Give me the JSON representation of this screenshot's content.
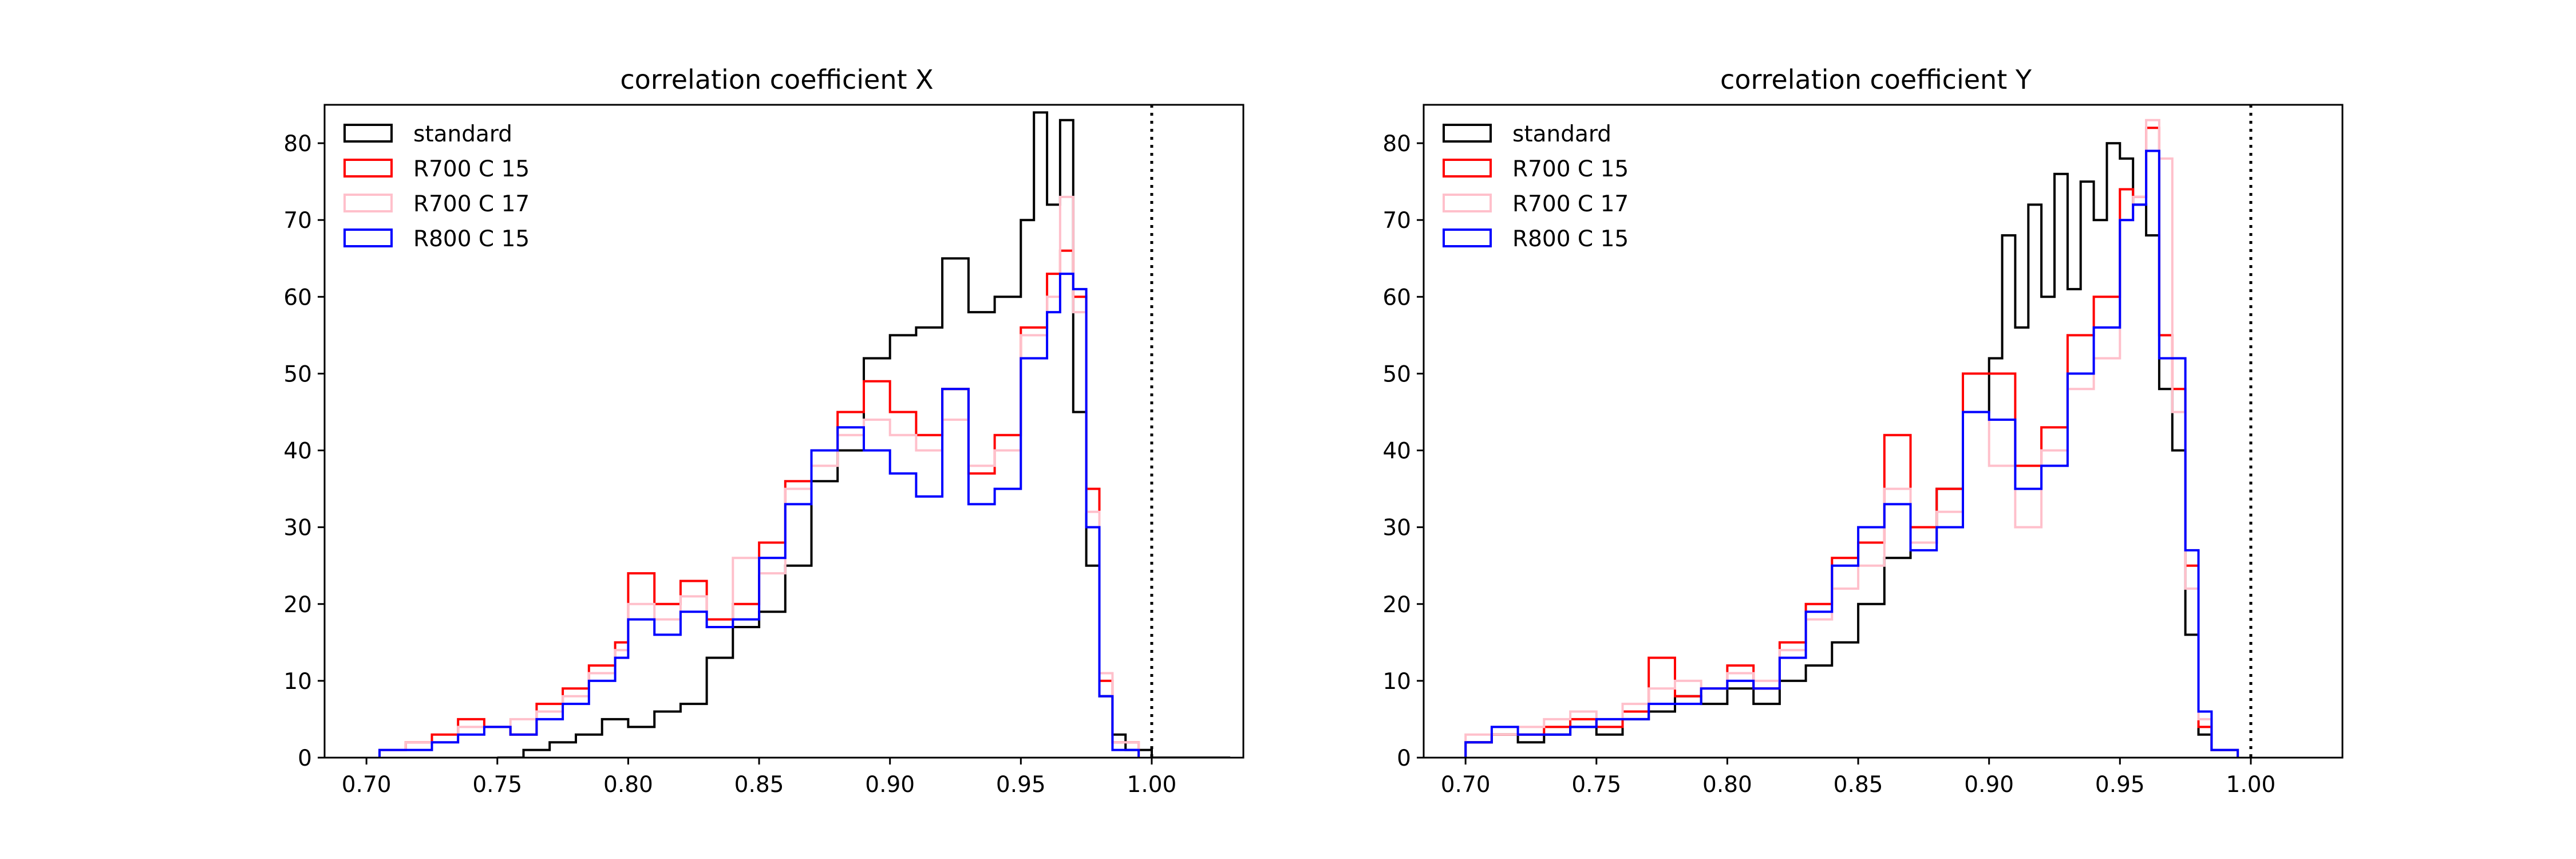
{
  "chart_data": [
    {
      "type": "histogram",
      "title": "correlation coefficient X",
      "xlabel": "",
      "ylabel": "",
      "xlim": [
        0.684,
        1.035
      ],
      "ylim": [
        0,
        85
      ],
      "xticks": [
        "0.70",
        "0.75",
        "0.80",
        "0.85",
        "0.90",
        "0.95",
        "1.00"
      ],
      "yticks": [
        "0",
        "10",
        "20",
        "30",
        "40",
        "50",
        "60",
        "70",
        "80"
      ],
      "vline": {
        "x": 1.0,
        "style": "dotted",
        "color": "#000000"
      },
      "legend": {
        "placement": "top-left"
      },
      "series": [
        {
          "name": "standard",
          "color": "#000000",
          "x": [
            0.75,
            0.76,
            0.77,
            0.78,
            0.79,
            0.8,
            0.81,
            0.82,
            0.83,
            0.84,
            0.85,
            0.86,
            0.87,
            0.88,
            0.89,
            0.9,
            0.91,
            0.92,
            0.93,
            0.94,
            0.95,
            0.955,
            0.96,
            0.965,
            0.97,
            0.975,
            0.98,
            0.985,
            0.99,
            1.0,
            1.02
          ],
          "y": [
            0,
            1,
            2,
            3,
            5,
            4,
            6,
            7,
            13,
            17,
            19,
            25,
            36,
            40,
            52,
            55,
            56,
            65,
            58,
            60,
            70,
            84,
            72,
            83,
            45,
            25,
            8,
            3,
            1,
            0,
            0
          ]
        },
        {
          "name": "R700 C 15",
          "color": "#ff0000",
          "x": [
            0.705,
            0.715,
            0.725,
            0.735,
            0.745,
            0.755,
            0.765,
            0.775,
            0.785,
            0.795,
            0.8,
            0.81,
            0.82,
            0.83,
            0.84,
            0.85,
            0.86,
            0.87,
            0.88,
            0.89,
            0.9,
            0.91,
            0.92,
            0.93,
            0.94,
            0.95,
            0.96,
            0.965,
            0.97,
            0.975,
            0.98,
            0.985
          ],
          "y": [
            1,
            2,
            3,
            5,
            4,
            3,
            7,
            9,
            12,
            15,
            24,
            20,
            23,
            18,
            20,
            28,
            36,
            40,
            45,
            49,
            45,
            42,
            48,
            37,
            42,
            56,
            63,
            66,
            60,
            35,
            10,
            2
          ]
        },
        {
          "name": "R700 C 17",
          "color": "#ffc0cb",
          "x": [
            0.705,
            0.715,
            0.725,
            0.735,
            0.745,
            0.755,
            0.765,
            0.775,
            0.785,
            0.795,
            0.8,
            0.81,
            0.82,
            0.83,
            0.84,
            0.85,
            0.86,
            0.87,
            0.88,
            0.89,
            0.9,
            0.91,
            0.92,
            0.93,
            0.94,
            0.95,
            0.96,
            0.965,
            0.97,
            0.975,
            0.98,
            0.985
          ],
          "y": [
            1,
            2,
            2,
            4,
            4,
            5,
            6,
            8,
            11,
            14,
            20,
            18,
            21,
            17,
            26,
            24,
            35,
            38,
            42,
            44,
            42,
            40,
            44,
            38,
            40,
            55,
            60,
            73,
            58,
            32,
            11,
            2
          ]
        },
        {
          "name": "R800 C 15",
          "color": "#0000ff",
          "x": [
            0.705,
            0.715,
            0.725,
            0.735,
            0.745,
            0.755,
            0.765,
            0.775,
            0.785,
            0.795,
            0.8,
            0.81,
            0.82,
            0.83,
            0.84,
            0.85,
            0.86,
            0.87,
            0.88,
            0.89,
            0.9,
            0.91,
            0.92,
            0.93,
            0.94,
            0.95,
            0.96,
            0.965,
            0.97,
            0.975,
            0.98,
            0.985
          ],
          "y": [
            1,
            1,
            2,
            3,
            4,
            3,
            5,
            7,
            10,
            13,
            18,
            16,
            19,
            17,
            18,
            26,
            33,
            40,
            43,
            40,
            37,
            34,
            48,
            33,
            35,
            52,
            58,
            63,
            61,
            30,
            8,
            1
          ]
        }
      ]
    },
    {
      "type": "histogram",
      "title": "correlation coefficient Y",
      "xlabel": "",
      "ylabel": "",
      "xlim": [
        0.684,
        1.035
      ],
      "ylim": [
        0,
        85
      ],
      "xticks": [
        "0.70",
        "0.75",
        "0.80",
        "0.85",
        "0.90",
        "0.95",
        "1.00"
      ],
      "yticks": [
        "0",
        "10",
        "20",
        "30",
        "40",
        "50",
        "60",
        "70",
        "80"
      ],
      "vline": {
        "x": 1.0,
        "style": "dotted",
        "color": "#000000"
      },
      "legend": {
        "placement": "top-left"
      },
      "series": [
        {
          "name": "standard",
          "color": "#000000",
          "x": [
            0.7,
            0.71,
            0.72,
            0.73,
            0.74,
            0.75,
            0.76,
            0.77,
            0.78,
            0.79,
            0.8,
            0.81,
            0.82,
            0.83,
            0.84,
            0.85,
            0.86,
            0.87,
            0.88,
            0.89,
            0.9,
            0.905,
            0.91,
            0.915,
            0.92,
            0.925,
            0.93,
            0.935,
            0.94,
            0.945,
            0.95,
            0.955,
            0.96,
            0.965,
            0.97,
            0.975,
            0.98,
            0.985
          ],
          "y": [
            2,
            3,
            2,
            3,
            4,
            3,
            5,
            6,
            8,
            7,
            9,
            7,
            10,
            12,
            15,
            20,
            26,
            28,
            35,
            45,
            52,
            68,
            56,
            72,
            60,
            76,
            61,
            75,
            70,
            80,
            78,
            72,
            68,
            48,
            40,
            16,
            3,
            1
          ]
        },
        {
          "name": "R700 C 15",
          "color": "#ff0000",
          "x": [
            0.7,
            0.71,
            0.72,
            0.73,
            0.74,
            0.75,
            0.76,
            0.77,
            0.78,
            0.79,
            0.8,
            0.81,
            0.82,
            0.83,
            0.84,
            0.85,
            0.86,
            0.87,
            0.88,
            0.89,
            0.9,
            0.91,
            0.92,
            0.93,
            0.94,
            0.95,
            0.955,
            0.96,
            0.965,
            0.97,
            0.975,
            0.98,
            0.985
          ],
          "y": [
            2,
            3,
            3,
            4,
            5,
            4,
            6,
            13,
            8,
            9,
            12,
            9,
            15,
            20,
            26,
            28,
            42,
            30,
            35,
            50,
            50,
            38,
            43,
            55,
            60,
            74,
            73,
            82,
            55,
            48,
            25,
            4,
            1
          ]
        },
        {
          "name": "R700 C 17",
          "color": "#ffc0cb",
          "x": [
            0.7,
            0.71,
            0.72,
            0.73,
            0.74,
            0.75,
            0.76,
            0.77,
            0.78,
            0.79,
            0.8,
            0.81,
            0.82,
            0.83,
            0.84,
            0.85,
            0.86,
            0.87,
            0.88,
            0.89,
            0.9,
            0.91,
            0.92,
            0.93,
            0.94,
            0.95,
            0.955,
            0.96,
            0.965,
            0.97,
            0.975,
            0.98,
            0.985
          ],
          "y": [
            3,
            3,
            4,
            5,
            6,
            5,
            7,
            9,
            10,
            9,
            11,
            10,
            14,
            18,
            22,
            25,
            35,
            28,
            32,
            45,
            38,
            30,
            40,
            48,
            52,
            70,
            73,
            83,
            78,
            45,
            22,
            5,
            1
          ]
        },
        {
          "name": "R800 C 15",
          "color": "#0000ff",
          "x": [
            0.7,
            0.71,
            0.72,
            0.73,
            0.74,
            0.75,
            0.76,
            0.77,
            0.78,
            0.79,
            0.8,
            0.81,
            0.82,
            0.83,
            0.84,
            0.85,
            0.86,
            0.87,
            0.88,
            0.89,
            0.9,
            0.91,
            0.92,
            0.93,
            0.94,
            0.95,
            0.955,
            0.96,
            0.965,
            0.97,
            0.975,
            0.98,
            0.985
          ],
          "y": [
            2,
            4,
            3,
            3,
            4,
            5,
            5,
            7,
            7,
            9,
            10,
            9,
            13,
            19,
            25,
            30,
            33,
            27,
            30,
            45,
            44,
            35,
            38,
            50,
            56,
            70,
            72,
            79,
            52,
            52,
            27,
            6,
            1
          ]
        }
      ]
    }
  ]
}
